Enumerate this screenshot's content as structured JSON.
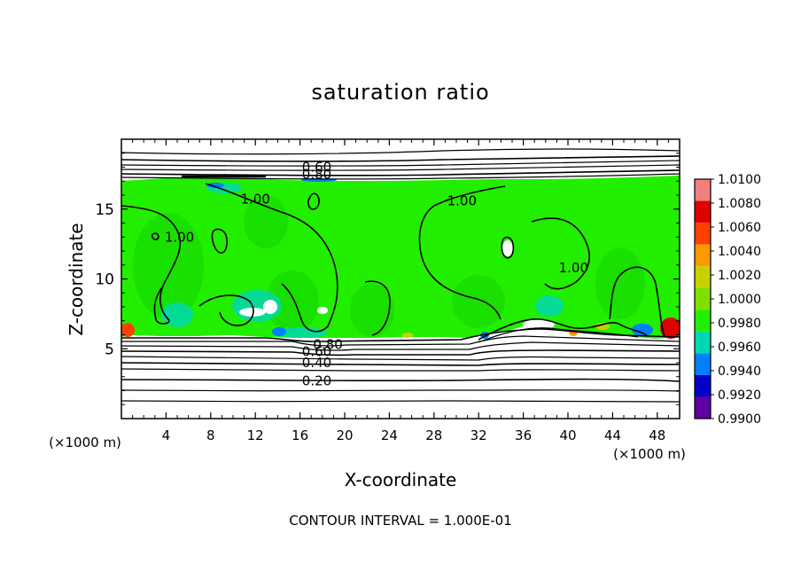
{
  "chart_data": {
    "type": "heatmap",
    "title": "saturation ratio",
    "xlabel": "X-coordinate",
    "ylabel": "Z-coordinate",
    "x_unit": "(×1000 m)",
    "y_unit": "(×1000 m)",
    "xlim": [
      0,
      50
    ],
    "ylim": [
      0,
      20
    ],
    "x_ticks": [
      4,
      8,
      12,
      16,
      20,
      24,
      28,
      32,
      36,
      40,
      44,
      48
    ],
    "y_ticks": [
      5,
      10,
      15
    ],
    "colorbar": {
      "levels": [
        "1.0100",
        "1.0080",
        "1.0060",
        "1.0040",
        "1.0020",
        "1.0000",
        "0.9980",
        "0.9960",
        "0.9940",
        "0.9920",
        "0.9900"
      ],
      "colors": [
        "#f08080",
        "#e00000",
        "#ff4000",
        "#ff9900",
        "#c8d000",
        "#7fe000",
        "#22ee00",
        "#00d8b0",
        "#0080ff",
        "#0000c8",
        "#6000a0"
      ]
    },
    "field_color": "#22ee00",
    "contour_labels": [
      {
        "text": "0.60",
        "x": 17.5,
        "z": 18.0
      },
      {
        "text": "0.80",
        "x": 17.5,
        "z": 17.5
      },
      {
        "text": "1.00",
        "x": 12.0,
        "z": 15.7
      },
      {
        "text": "1.00",
        "x": 30.5,
        "z": 15.6
      },
      {
        "text": "1.00",
        "x": 5.2,
        "z": 13.0
      },
      {
        "text": "1.00",
        "x": 40.5,
        "z": 10.8
      },
      {
        "text": "0.80",
        "x": 18.5,
        "z": 5.3
      },
      {
        "text": "0.60",
        "x": 17.5,
        "z": 4.8
      },
      {
        "text": "0.40",
        "x": 17.5,
        "z": 4.0
      },
      {
        "text": "0.20",
        "x": 17.5,
        "z": 2.7
      }
    ],
    "footnote": "CONTOUR INTERVAL = 1.000E-01"
  }
}
